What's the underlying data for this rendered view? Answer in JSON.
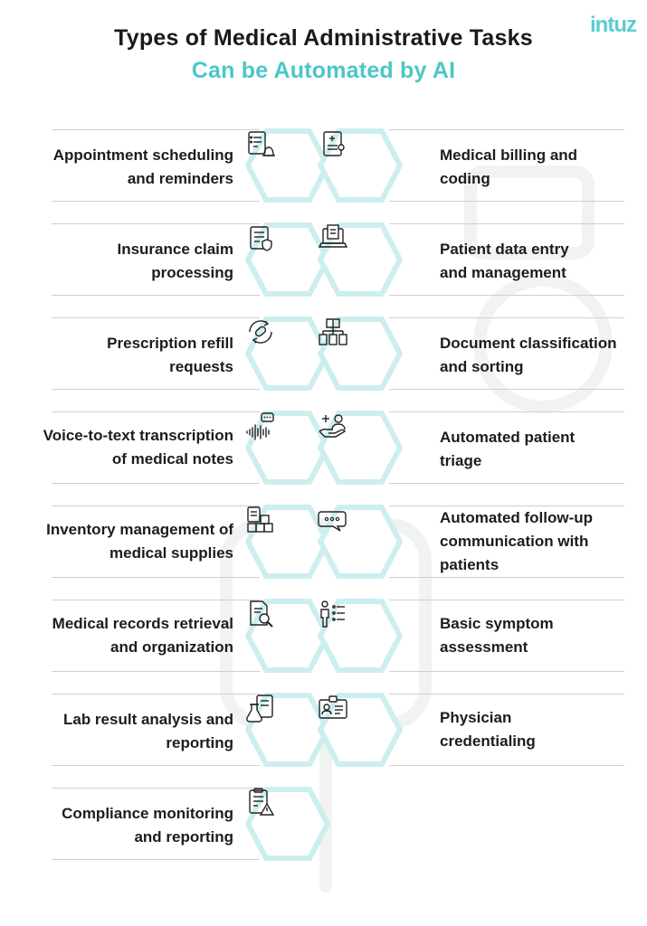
{
  "header": {
    "title_line1": "Types of Medical Administrative Tasks",
    "title_line2": "Can be Automated by AI",
    "logo_text": "intuz"
  },
  "colors": {
    "accent": "#4cc6c6",
    "hex_border": "#cdeeee",
    "hex_fill": "#ffffff",
    "line": "#cfcfcf",
    "text": "#1c1c1c"
  },
  "left_tasks": [
    {
      "label": "Appointment scheduling\nand reminders",
      "icon": "calendar-bell-icon"
    },
    {
      "label": "Insurance claim\nprocessing",
      "icon": "insurance-document-icon"
    },
    {
      "label": "Prescription refill\nrequests",
      "icon": "pill-refresh-icon"
    },
    {
      "label": "Voice-to-text transcription\nof medical notes",
      "icon": "voice-wave-icon"
    },
    {
      "label": "Inventory management of\nmedical supplies",
      "icon": "inventory-boxes-icon"
    },
    {
      "label": "Medical records retrieval\nand organization",
      "icon": "records-search-icon"
    },
    {
      "label": "Lab result analysis and\nreporting",
      "icon": "lab-flask-icon"
    },
    {
      "label": "Compliance monitoring\nand reporting",
      "icon": "compliance-checklist-icon"
    }
  ],
  "right_tasks": [
    {
      "label": "Medical billing and\ncoding",
      "icon": "billing-invoice-icon"
    },
    {
      "label": "Patient data entry\nand management",
      "icon": "laptop-data-icon"
    },
    {
      "label": "Document classification\nand sorting",
      "icon": "document-hierarchy-icon"
    },
    {
      "label": "Automated patient\ntriage",
      "icon": "hand-care-icon"
    },
    {
      "label": "Automated follow-up\ncommunication with\npatients",
      "icon": "chat-bubbles-icon"
    },
    {
      "label": "Basic symptom\nassessment",
      "icon": "person-checklist-icon"
    },
    {
      "label": "Physician\ncredentialing",
      "icon": "id-card-icon"
    }
  ]
}
